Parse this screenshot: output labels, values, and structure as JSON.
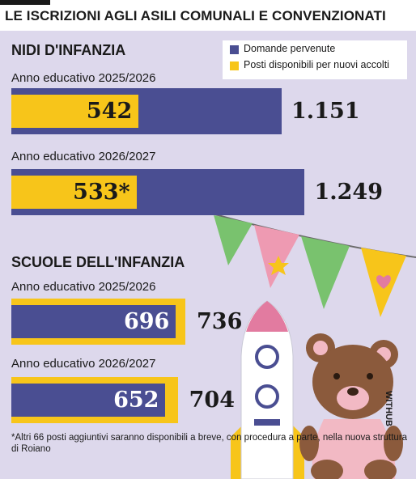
{
  "title": "LE ISCRIZIONI AGLI ASILI COMUNALI E CONVENZIONATI",
  "legend": [
    {
      "label": "Domande pervenute",
      "color": "#4a4e92"
    },
    {
      "label": "Posti disponibili per nuovi accolti",
      "color": "#f7c51a"
    }
  ],
  "chart_data": [
    {
      "type": "bar",
      "title": "NIDI D'INFANZIA",
      "categories": [
        "Anno educativo 2025/2026",
        "Anno educativo 2026/2027"
      ],
      "series": [
        {
          "name": "Domande pervenute",
          "values": [
            1151,
            1249
          ],
          "labels": [
            "1.151",
            "1.249"
          ]
        },
        {
          "name": "Posti disponibili per nuovi accolti",
          "values": [
            542,
            533
          ],
          "labels": [
            "542",
            "533*"
          ]
        }
      ]
    },
    {
      "type": "bar",
      "title": "SCUOLE DELL'INFANZIA",
      "categories": [
        "Anno educativo 2025/2026",
        "Anno educativo 2026/2027"
      ],
      "series": [
        {
          "name": "Domande pervenute",
          "values": [
            736,
            704
          ],
          "labels": [
            "736",
            "704"
          ]
        },
        {
          "name": "Posti disponibili per nuovi accolti",
          "values": [
            696,
            652
          ],
          "labels": [
            "696",
            "652"
          ]
        }
      ]
    }
  ],
  "footnote": "*Altri 66 posti aggiuntivi saranno disponibili a breve, con procedura a parte, nella nuova struttura di Roiano",
  "credit": "WITHUB"
}
